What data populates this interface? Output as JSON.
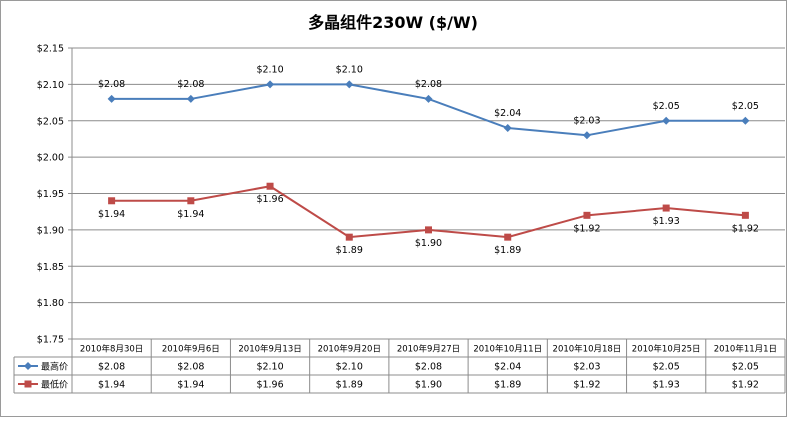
{
  "chart_data": {
    "type": "line",
    "title": "多晶组件230W ($/W)",
    "categories": [
      "2010年8月30日",
      "2010年9月6日",
      "2010年9月13日",
      "2010年9月20日",
      "2010年9月27日",
      "2010年10月11日",
      "2010年10月18日",
      "2010年10月25日",
      "2010年11月1日"
    ],
    "series": [
      {
        "name": "最高价",
        "color": "#4a7ebb",
        "marker": "diamond",
        "values": [
          2.08,
          2.08,
          2.1,
          2.1,
          2.08,
          2.04,
          2.03,
          2.05,
          2.05
        ],
        "labels": [
          "$2.08",
          "$2.08",
          "$2.10",
          "$2.10",
          "$2.08",
          "$2.04",
          "$2.03",
          "$2.05",
          "$2.05"
        ]
      },
      {
        "name": "最低价",
        "color": "#be4b48",
        "marker": "square",
        "values": [
          1.94,
          1.94,
          1.96,
          1.89,
          1.9,
          1.89,
          1.92,
          1.93,
          1.92
        ],
        "labels": [
          "$1.94",
          "$1.94",
          "$1.96",
          "$1.89",
          "$1.90",
          "$1.89",
          "$1.92",
          "$1.93",
          "$1.92"
        ]
      }
    ],
    "ylim": [
      1.75,
      2.15
    ],
    "yticks": [
      2.15,
      2.1,
      2.05,
      2.0,
      1.95,
      1.9,
      1.85,
      1.8,
      1.75
    ],
    "ytick_labels": [
      "$2.15",
      "$2.10",
      "$2.05",
      "$2.00",
      "$1.95",
      "$1.90",
      "$1.85",
      "$1.80",
      "$1.75"
    ],
    "grid": true,
    "legend": "data-table-below"
  }
}
